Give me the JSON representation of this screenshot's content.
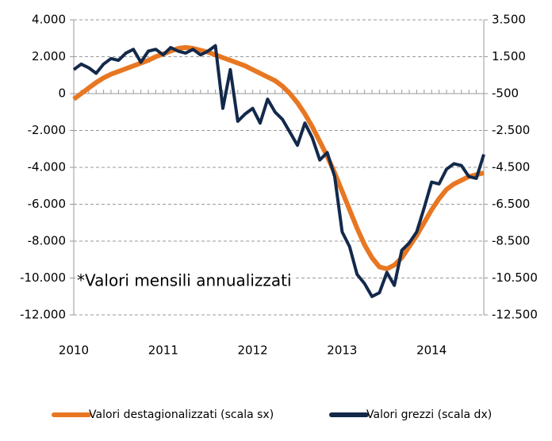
{
  "chart_data": {
    "type": "line",
    "annotation": "*Valori mensili annualizzati",
    "categories": [
      "2010",
      null,
      null,
      null,
      null,
      null,
      null,
      null,
      null,
      null,
      null,
      null,
      "2011",
      null,
      null,
      null,
      null,
      null,
      null,
      null,
      null,
      null,
      null,
      null,
      "2012",
      null,
      null,
      null,
      null,
      null,
      null,
      null,
      null,
      null,
      null,
      null,
      "2013",
      null,
      null,
      null,
      null,
      null,
      null,
      null,
      null,
      null,
      null,
      null,
      "2014",
      null,
      null,
      null,
      null,
      null,
      null,
      null
    ],
    "series": [
      {
        "name": "Valori destagionalizzati (scala sx)",
        "color": "#e87722",
        "axis": "y",
        "values": [
          -300,
          0,
          300,
          600,
          850,
          1050,
          1200,
          1350,
          1500,
          1650,
          1800,
          2000,
          2150,
          2300,
          2450,
          2500,
          2450,
          2350,
          2250,
          2100,
          1950,
          1800,
          1650,
          1500,
          1300,
          1100,
          900,
          700,
          400,
          0,
          -500,
          -1100,
          -1800,
          -2600,
          -3400,
          -4300,
          -5300,
          -6300,
          -7300,
          -8200,
          -8900,
          -9400,
          -9500,
          -9300,
          -8900,
          -8300,
          -7700,
          -7000,
          -6300,
          -5700,
          -5200,
          -4900,
          -4700,
          -4500,
          -4400,
          -4300
        ]
      },
      {
        "name": "Valori grezzi (scala dx)",
        "color": "#13294b",
        "axis": "y2",
        "values": [
          800,
          1100,
          900,
          600,
          1100,
          1400,
          1300,
          1700,
          1900,
          1200,
          1800,
          1900,
          1600,
          2000,
          1800,
          1700,
          1900,
          1600,
          1800,
          2100,
          -1300,
          800,
          -2000,
          -1600,
          -1300,
          -2100,
          -800,
          -1500,
          -1900,
          -2600,
          -3300,
          -2100,
          -2900,
          -4100,
          -3700,
          -5000,
          -8000,
          -8800,
          -10300,
          -10800,
          -11500,
          -11300,
          -10200,
          -10900,
          -9000,
          -8600,
          -8000,
          -6700,
          -5300,
          -5400,
          -4600,
          -4300,
          -4400,
          -5000,
          -5100,
          -3800
        ]
      }
    ],
    "ylim": [
      -12000,
      4000
    ],
    "yticks": [
      {
        "value": 4000,
        "label": "4.000"
      },
      {
        "value": 2000,
        "label": "2.000"
      },
      0,
      {
        "value": -2000,
        "label": "-2.000"
      },
      {
        "value": -4000,
        "label": "-4.000"
      },
      {
        "value": -6000,
        "label": "-6.000"
      },
      {
        "value": -8000,
        "label": "-8.000"
      },
      {
        "value": -10000,
        "label": "-10.000"
      },
      {
        "value": -12000,
        "label": "-12.000"
      }
    ],
    "y2lim": [
      -12500,
      3500
    ],
    "y2ticks": [
      {
        "value": 3500,
        "label": "3.500"
      },
      {
        "value": 1500,
        "label": "1.500"
      },
      -500,
      {
        "value": -2500,
        "label": "-2.500"
      },
      {
        "value": -4500,
        "label": "-4.500"
      },
      {
        "value": -6500,
        "label": "-6.500"
      },
      {
        "value": -8500,
        "label": "-8.500"
      },
      {
        "value": -10500,
        "label": "-10.500"
      },
      {
        "value": -12500,
        "label": "-12.500"
      }
    ],
    "grid": true,
    "legend": "bottom"
  }
}
